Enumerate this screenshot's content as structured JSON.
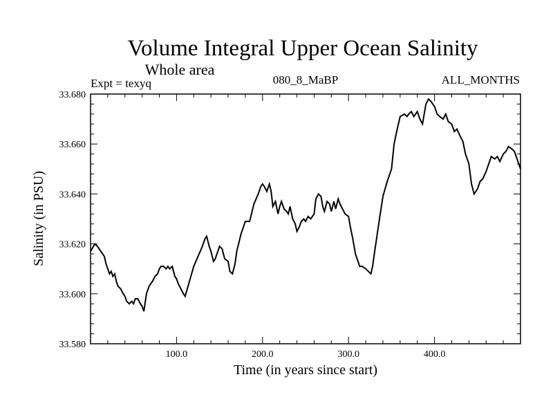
{
  "chart_data": {
    "type": "line",
    "title": "Volume Integral Upper Ocean Salinity",
    "subtitle": "Whole area",
    "left_note": "Expt = texyq",
    "center_note": "080_8_MaBP",
    "right_note": "ALL_MONTHS",
    "xlabel": "Time (in years since start)",
    "ylabel": "Salinity (in PSU)",
    "xlim": [
      0,
      500
    ],
    "ylim": [
      33.58,
      33.68
    ],
    "xticks": [
      {
        "value": 100,
        "label": "100.0"
      },
      {
        "value": 200,
        "label": "200.0"
      },
      {
        "value": 300,
        "label": "300.0"
      },
      {
        "value": 400,
        "label": "400.0"
      }
    ],
    "yticks": [
      {
        "value": 33.58,
        "label": "33.580"
      },
      {
        "value": 33.6,
        "label": "33.600"
      },
      {
        "value": 33.62,
        "label": "33.620"
      },
      {
        "value": 33.64,
        "label": "33.640"
      },
      {
        "value": 33.66,
        "label": "33.660"
      },
      {
        "value": 33.68,
        "label": "33.680"
      }
    ],
    "grid": false,
    "series": [
      {
        "color": "#000000",
        "x": [
          0,
          5,
          8,
          12,
          16,
          18,
          20,
          22,
          24,
          26,
          28,
          30,
          32,
          35,
          38,
          40,
          42,
          45,
          48,
          50,
          52,
          55,
          58,
          60,
          62,
          65,
          68,
          70,
          72,
          75,
          78,
          80,
          82,
          85,
          88,
          90,
          92,
          95,
          98,
          100,
          102,
          105,
          108,
          110,
          115,
          120,
          125,
          130,
          133,
          135,
          138,
          140,
          143,
          145,
          148,
          150,
          153,
          156,
          160,
          162,
          165,
          168,
          170,
          175,
          180,
          185,
          190,
          195,
          198,
          200,
          202,
          205,
          208,
          210,
          212,
          215,
          218,
          220,
          222,
          225,
          228,
          230,
          232,
          235,
          238,
          240,
          243,
          245,
          248,
          250,
          253,
          256,
          260,
          262,
          265,
          268,
          270,
          272,
          275,
          278,
          280,
          283,
          285,
          288,
          290,
          293,
          296,
          300,
          302,
          305,
          308,
          310,
          313,
          316,
          320,
          323,
          326,
          328,
          330,
          333,
          336,
          340,
          345,
          350,
          353,
          356,
          360,
          365,
          368,
          370,
          373,
          376,
          380,
          383,
          386,
          390,
          393,
          396,
          400,
          403,
          406,
          410,
          413,
          416,
          420,
          423,
          426,
          430,
          433,
          436,
          440,
          443,
          446,
          450,
          453,
          456,
          460,
          463,
          466,
          470,
          473,
          476,
          480,
          483,
          486,
          490,
          493,
          496,
          500
        ],
        "y": [
          33.617,
          33.62,
          33.619,
          33.617,
          33.615,
          33.612,
          33.61,
          33.608,
          33.609,
          33.607,
          33.608,
          33.605,
          33.603,
          33.602,
          33.6,
          33.599,
          33.597,
          33.596,
          33.597,
          33.596,
          33.598,
          33.598,
          33.596,
          33.595,
          33.593,
          33.6,
          33.603,
          33.604,
          33.605,
          33.607,
          33.608,
          33.61,
          33.611,
          33.611,
          33.61,
          33.611,
          33.61,
          33.611,
          33.607,
          33.606,
          33.604,
          33.602,
          33.6,
          33.599,
          33.605,
          33.611,
          33.615,
          33.619,
          33.622,
          33.623,
          33.619,
          33.617,
          33.613,
          33.614,
          33.617,
          33.619,
          33.618,
          33.614,
          33.613,
          33.609,
          33.608,
          33.612,
          33.617,
          33.624,
          33.629,
          33.629,
          33.636,
          33.64,
          33.643,
          33.644,
          33.643,
          33.641,
          33.644,
          33.641,
          33.635,
          33.637,
          33.632,
          33.635,
          33.637,
          33.634,
          33.633,
          33.632,
          33.635,
          33.63,
          33.628,
          33.625,
          33.627,
          33.629,
          33.63,
          33.629,
          33.631,
          33.63,
          33.632,
          33.638,
          33.64,
          33.639,
          33.635,
          33.633,
          33.637,
          33.636,
          33.633,
          33.637,
          33.634,
          33.638,
          33.636,
          33.634,
          33.632,
          33.631,
          33.627,
          33.622,
          33.616,
          33.614,
          33.611,
          33.611,
          33.61,
          33.609,
          33.608,
          33.611,
          33.616,
          33.623,
          33.63,
          33.639,
          33.645,
          33.65,
          33.66,
          33.665,
          33.671,
          33.672,
          33.671,
          33.672,
          33.673,
          33.671,
          33.673,
          33.67,
          33.668,
          33.676,
          33.678,
          33.677,
          33.675,
          33.672,
          33.671,
          33.67,
          33.672,
          33.669,
          33.668,
          33.665,
          33.666,
          33.663,
          33.661,
          33.656,
          33.652,
          33.644,
          33.64,
          33.642,
          33.645,
          33.646,
          33.649,
          33.652,
          33.655,
          33.654,
          33.655,
          33.653,
          33.656,
          33.657,
          33.659,
          33.658,
          33.657,
          33.654,
          33.65
        ]
      }
    ]
  }
}
